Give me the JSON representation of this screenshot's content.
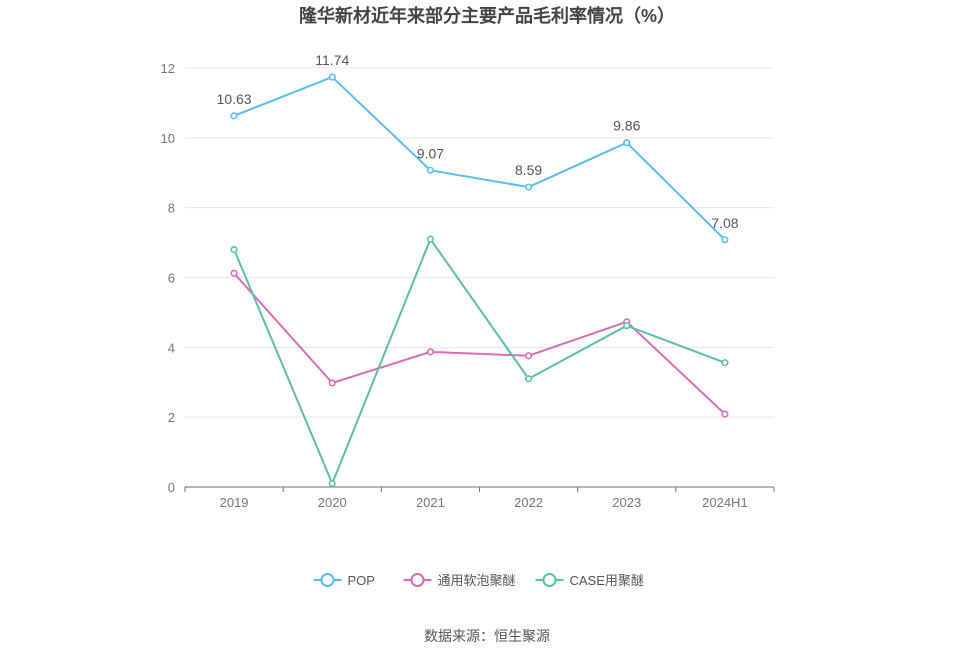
{
  "chart_data": {
    "type": "line",
    "title": "隆华新材近年来部分主要产品毛利率情况（%）",
    "categories": [
      "2019",
      "2020",
      "2021",
      "2022",
      "2023",
      "2024H1"
    ],
    "ylim": [
      0,
      12
    ],
    "yticks": [
      0,
      2,
      4,
      6,
      8,
      10,
      12
    ],
    "grid": true,
    "legend_position": "bottom",
    "series": [
      {
        "name": "POP",
        "color": "#5bbdf0",
        "values": [
          10.63,
          11.74,
          9.07,
          8.59,
          9.86,
          7.08
        ],
        "show_labels": true
      },
      {
        "name": "通用软泡聚醚",
        "color": "#d96db6",
        "values": [
          6.12,
          2.98,
          3.87,
          3.76,
          4.73,
          2.09
        ],
        "show_labels": false
      },
      {
        "name": "CASE用聚醚",
        "color": "#5dbfa6",
        "values": [
          6.8,
          0.1,
          7.1,
          3.1,
          4.62,
          3.56
        ],
        "show_labels": false
      }
    ]
  },
  "source_note": "数据来源：恒生聚源"
}
